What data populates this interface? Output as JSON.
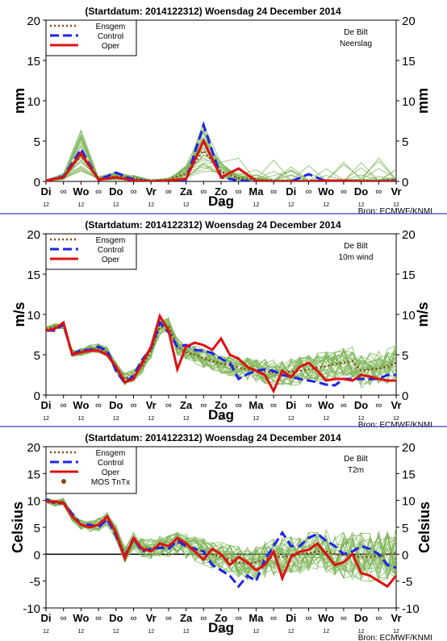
{
  "chart_data": [
    {
      "type": "line",
      "header": "(Startdatum: 2014122312)   Woensdag  24 December  2014",
      "station": "De Bilt",
      "variable": "Neerslag",
      "ylabel": "mm",
      "xlabel": "Dag",
      "source": "Bron: ECMWF/KNMI",
      "ylim": [
        0,
        20
      ],
      "yticks": [
        0,
        5,
        10,
        15,
        20
      ],
      "day_labels": [
        "Di",
        "Wo",
        "Do",
        "Vr",
        "Za",
        "Zo",
        "Ma",
        "Di",
        "Wo",
        "Do",
        "Vr"
      ],
      "midnight_symbol": "∞",
      "hour_label": "12",
      "legend": [
        "Ensgem",
        "Control",
        "Oper"
      ],
      "colors": {
        "ensgem": "#8b4513",
        "control": "#1e22ee",
        "oper": "#e01010",
        "members": "#7fb65a"
      },
      "x": [
        0,
        0.5,
        1,
        1.5,
        2,
        2.5,
        3,
        3.5,
        4,
        4.5,
        5,
        5.5,
        6,
        6.5,
        7,
        7.5,
        8,
        8.5,
        9,
        9.5,
        10
      ],
      "series": [
        {
          "name": "Ensgem",
          "values": [
            0.1,
            0.5,
            3.2,
            0.3,
            0.6,
            0.4,
            0.1,
            0.2,
            1.0,
            3.8,
            1.2,
            0.4,
            0.2,
            0.1,
            0.1,
            0.1,
            0.1,
            0.1,
            0.1,
            0.1,
            0.2
          ]
        },
        {
          "name": "Control",
          "values": [
            0.1,
            0.6,
            4.0,
            0.2,
            1.1,
            0.2,
            0.0,
            0.1,
            0.1,
            7.0,
            0.5,
            0.1,
            0.0,
            0.0,
            0.0,
            0.9,
            0.0,
            0.0,
            0.0,
            0.0,
            0.1
          ]
        },
        {
          "name": "Oper",
          "values": [
            0.1,
            0.5,
            3.5,
            0.2,
            0.5,
            0.1,
            0.0,
            0.1,
            0.3,
            5.0,
            0.5,
            1.6,
            0.1,
            0.0,
            0.0,
            0.0,
            0.1,
            0.1,
            0.0,
            0.0,
            0.0
          ]
        }
      ]
    },
    {
      "type": "line",
      "header": "(Startdatum: 2014122312)   Woensdag  24 December  2014",
      "station": "De Bilt",
      "variable": "10m wind",
      "ylabel": "m/s",
      "xlabel": "Dag",
      "source": "Bron: ECMWF/KNMI",
      "ylim": [
        0,
        20
      ],
      "yticks": [
        0,
        5,
        10,
        15,
        20
      ],
      "day_labels": [
        "Di",
        "Wo",
        "Do",
        "Vr",
        "Za",
        "Zo",
        "Ma",
        "Di",
        "Wo",
        "Do",
        "Vr"
      ],
      "midnight_symbol": "∞",
      "hour_label": "12",
      "legend": [
        "Ensgem",
        "Control",
        "Oper"
      ],
      "colors": {
        "ensgem": "#8b4513",
        "control": "#1e22ee",
        "oper": "#e01010",
        "members": "#7fb65a"
      },
      "x": [
        0,
        0.25,
        0.5,
        0.75,
        1,
        1.25,
        1.5,
        1.75,
        2,
        2.25,
        2.5,
        2.75,
        3,
        3.25,
        3.5,
        3.75,
        4,
        4.25,
        4.5,
        4.75,
        5,
        5.25,
        5.5,
        5.75,
        6,
        6.25,
        6.5,
        6.75,
        7,
        7.25,
        7.5,
        7.75,
        8,
        8.25,
        8.5,
        8.75,
        9,
        9.25,
        9.5,
        9.75,
        10
      ],
      "series": [
        {
          "name": "Ensgem",
          "values": [
            8.2,
            8.5,
            8.6,
            5.2,
            5.4,
            5.7,
            5.8,
            5.3,
            3.5,
            2.0,
            2.4,
            3.6,
            5.5,
            8.4,
            8.6,
            6.0,
            5.3,
            5.0,
            4.6,
            4.2,
            3.9,
            3.7,
            3.4,
            3.2,
            3.0,
            2.9,
            2.8,
            2.8,
            2.9,
            3.0,
            3.2,
            3.4,
            3.6,
            3.8,
            4.0,
            4.2,
            3.0,
            3.2,
            3.3,
            3.5,
            4.0
          ]
        },
        {
          "name": "Control",
          "values": [
            8.0,
            8.0,
            8.8,
            5.0,
            5.6,
            5.6,
            6.0,
            5.5,
            3.0,
            1.5,
            2.4,
            4.4,
            5.8,
            9.0,
            7.8,
            6.0,
            6.2,
            5.6,
            5.5,
            5.2,
            4.5,
            4.0,
            2.0,
            2.6,
            3.0,
            3.2,
            3.0,
            2.5,
            2.3,
            2.0,
            1.8,
            1.6,
            1.3,
            1.2,
            2.0,
            2.0,
            2.0,
            2.0,
            2.0,
            2.5,
            2.5
          ]
        },
        {
          "name": "Oper",
          "values": [
            8.0,
            8.2,
            9.0,
            5.0,
            5.3,
            5.5,
            5.5,
            5.0,
            3.5,
            1.6,
            2.0,
            4.0,
            6.0,
            9.8,
            8.0,
            3.2,
            6.0,
            6.5,
            6.2,
            5.6,
            7.0,
            5.0,
            4.5,
            3.5,
            3.0,
            2.5,
            0.5,
            3.0,
            2.2,
            3.5,
            4.0,
            3.0,
            1.8,
            2.0,
            2.0,
            1.8,
            2.5,
            2.3,
            2.0,
            1.8,
            1.8
          ]
        }
      ]
    },
    {
      "type": "line",
      "header": "(Startdatum: 2014122312)   Woensdag  24 December  2014",
      "station": "De Bilt",
      "variable": "T2m",
      "ylabel": "Celsius",
      "xlabel": "Dag",
      "source": "Bron: ECMWF/KNMI",
      "ylim": [
        -10,
        20
      ],
      "yticks": [
        -10,
        -5,
        0,
        5,
        10,
        15,
        20
      ],
      "day_labels": [
        "Di",
        "Wo",
        "Do",
        "Vr",
        "Za",
        "Zo",
        "Ma",
        "Di",
        "Wo",
        "Do",
        "Vr"
      ],
      "midnight_symbol": "∞",
      "hour_label": "12",
      "legend": [
        "Ensgem",
        "Control",
        "Oper",
        "MOS TnTx"
      ],
      "colors": {
        "ensgem": "#8b4513",
        "control": "#1e22ee",
        "oper": "#e01010",
        "members": "#7fb65a",
        "mos": "#8b4513"
      },
      "x": [
        0,
        0.25,
        0.5,
        0.75,
        1,
        1.25,
        1.5,
        1.75,
        2,
        2.25,
        2.5,
        2.75,
        3,
        3.25,
        3.5,
        3.75,
        4,
        4.25,
        4.5,
        4.75,
        5,
        5.25,
        5.5,
        5.75,
        6,
        6.25,
        6.5,
        6.75,
        7,
        7.25,
        7.5,
        7.75,
        8,
        8.25,
        8.5,
        8.75,
        9,
        9.25,
        9.5,
        9.75,
        10
      ],
      "series": [
        {
          "name": "Ensgem",
          "values": [
            10.0,
            9.5,
            9.8,
            7.0,
            5.5,
            5.2,
            5.5,
            6.5,
            4.0,
            0.0,
            2.5,
            1.2,
            1.0,
            1.5,
            1.5,
            2.0,
            1.5,
            1.0,
            0.5,
            0.0,
            -0.5,
            -1.0,
            -1.5,
            -1.8,
            -1.5,
            -1.0,
            -0.5,
            -0.5,
            -0.3,
            0.0,
            0.2,
            0.5,
            0.5,
            0.0,
            -0.2,
            -0.3,
            -0.5,
            -0.5,
            -0.3,
            0.0,
            0.2
          ]
        },
        {
          "name": "Control",
          "values": [
            10.2,
            9.5,
            9.5,
            7.5,
            5.5,
            5.5,
            5.0,
            6.5,
            3.5,
            -0.5,
            3.0,
            0.5,
            1.0,
            1.2,
            1.0,
            2.5,
            1.5,
            1.0,
            0.5,
            -2.0,
            -3.0,
            -4.0,
            -6.0,
            -4.0,
            -5.0,
            -1.0,
            1.5,
            4.0,
            1.5,
            1.5,
            3.0,
            3.8,
            2.5,
            1.5,
            0.0,
            0.5,
            1.5,
            1.0,
            0.0,
            -2.0,
            -2.5
          ]
        },
        {
          "name": "Oper",
          "values": [
            9.8,
            9.8,
            9.5,
            7.0,
            5.5,
            5.0,
            5.5,
            7.0,
            4.0,
            -0.8,
            3.0,
            1.0,
            0.5,
            2.0,
            1.5,
            3.0,
            2.0,
            0.5,
            -1.0,
            1.0,
            0.0,
            -2.0,
            -0.5,
            -1.5,
            -3.0,
            -2.0,
            0.5,
            -4.5,
            -0.5,
            0.5,
            0.8,
            2.0,
            0.0,
            -2.0,
            -1.5,
            0.0,
            -3.5,
            -4.0,
            -5.0,
            -6.0,
            -4.0
          ]
        },
        {
          "name": "MOS TnTx",
          "values": [
            null,
            null,
            null,
            null,
            null,
            null,
            null,
            null,
            null,
            null,
            null,
            null,
            null,
            null,
            null,
            null,
            null,
            null,
            null,
            null,
            null,
            null,
            null,
            null,
            null,
            null,
            null,
            null,
            null,
            null,
            null,
            null,
            null,
            null,
            null,
            null,
            null,
            null,
            null,
            null,
            null
          ]
        }
      ]
    }
  ]
}
